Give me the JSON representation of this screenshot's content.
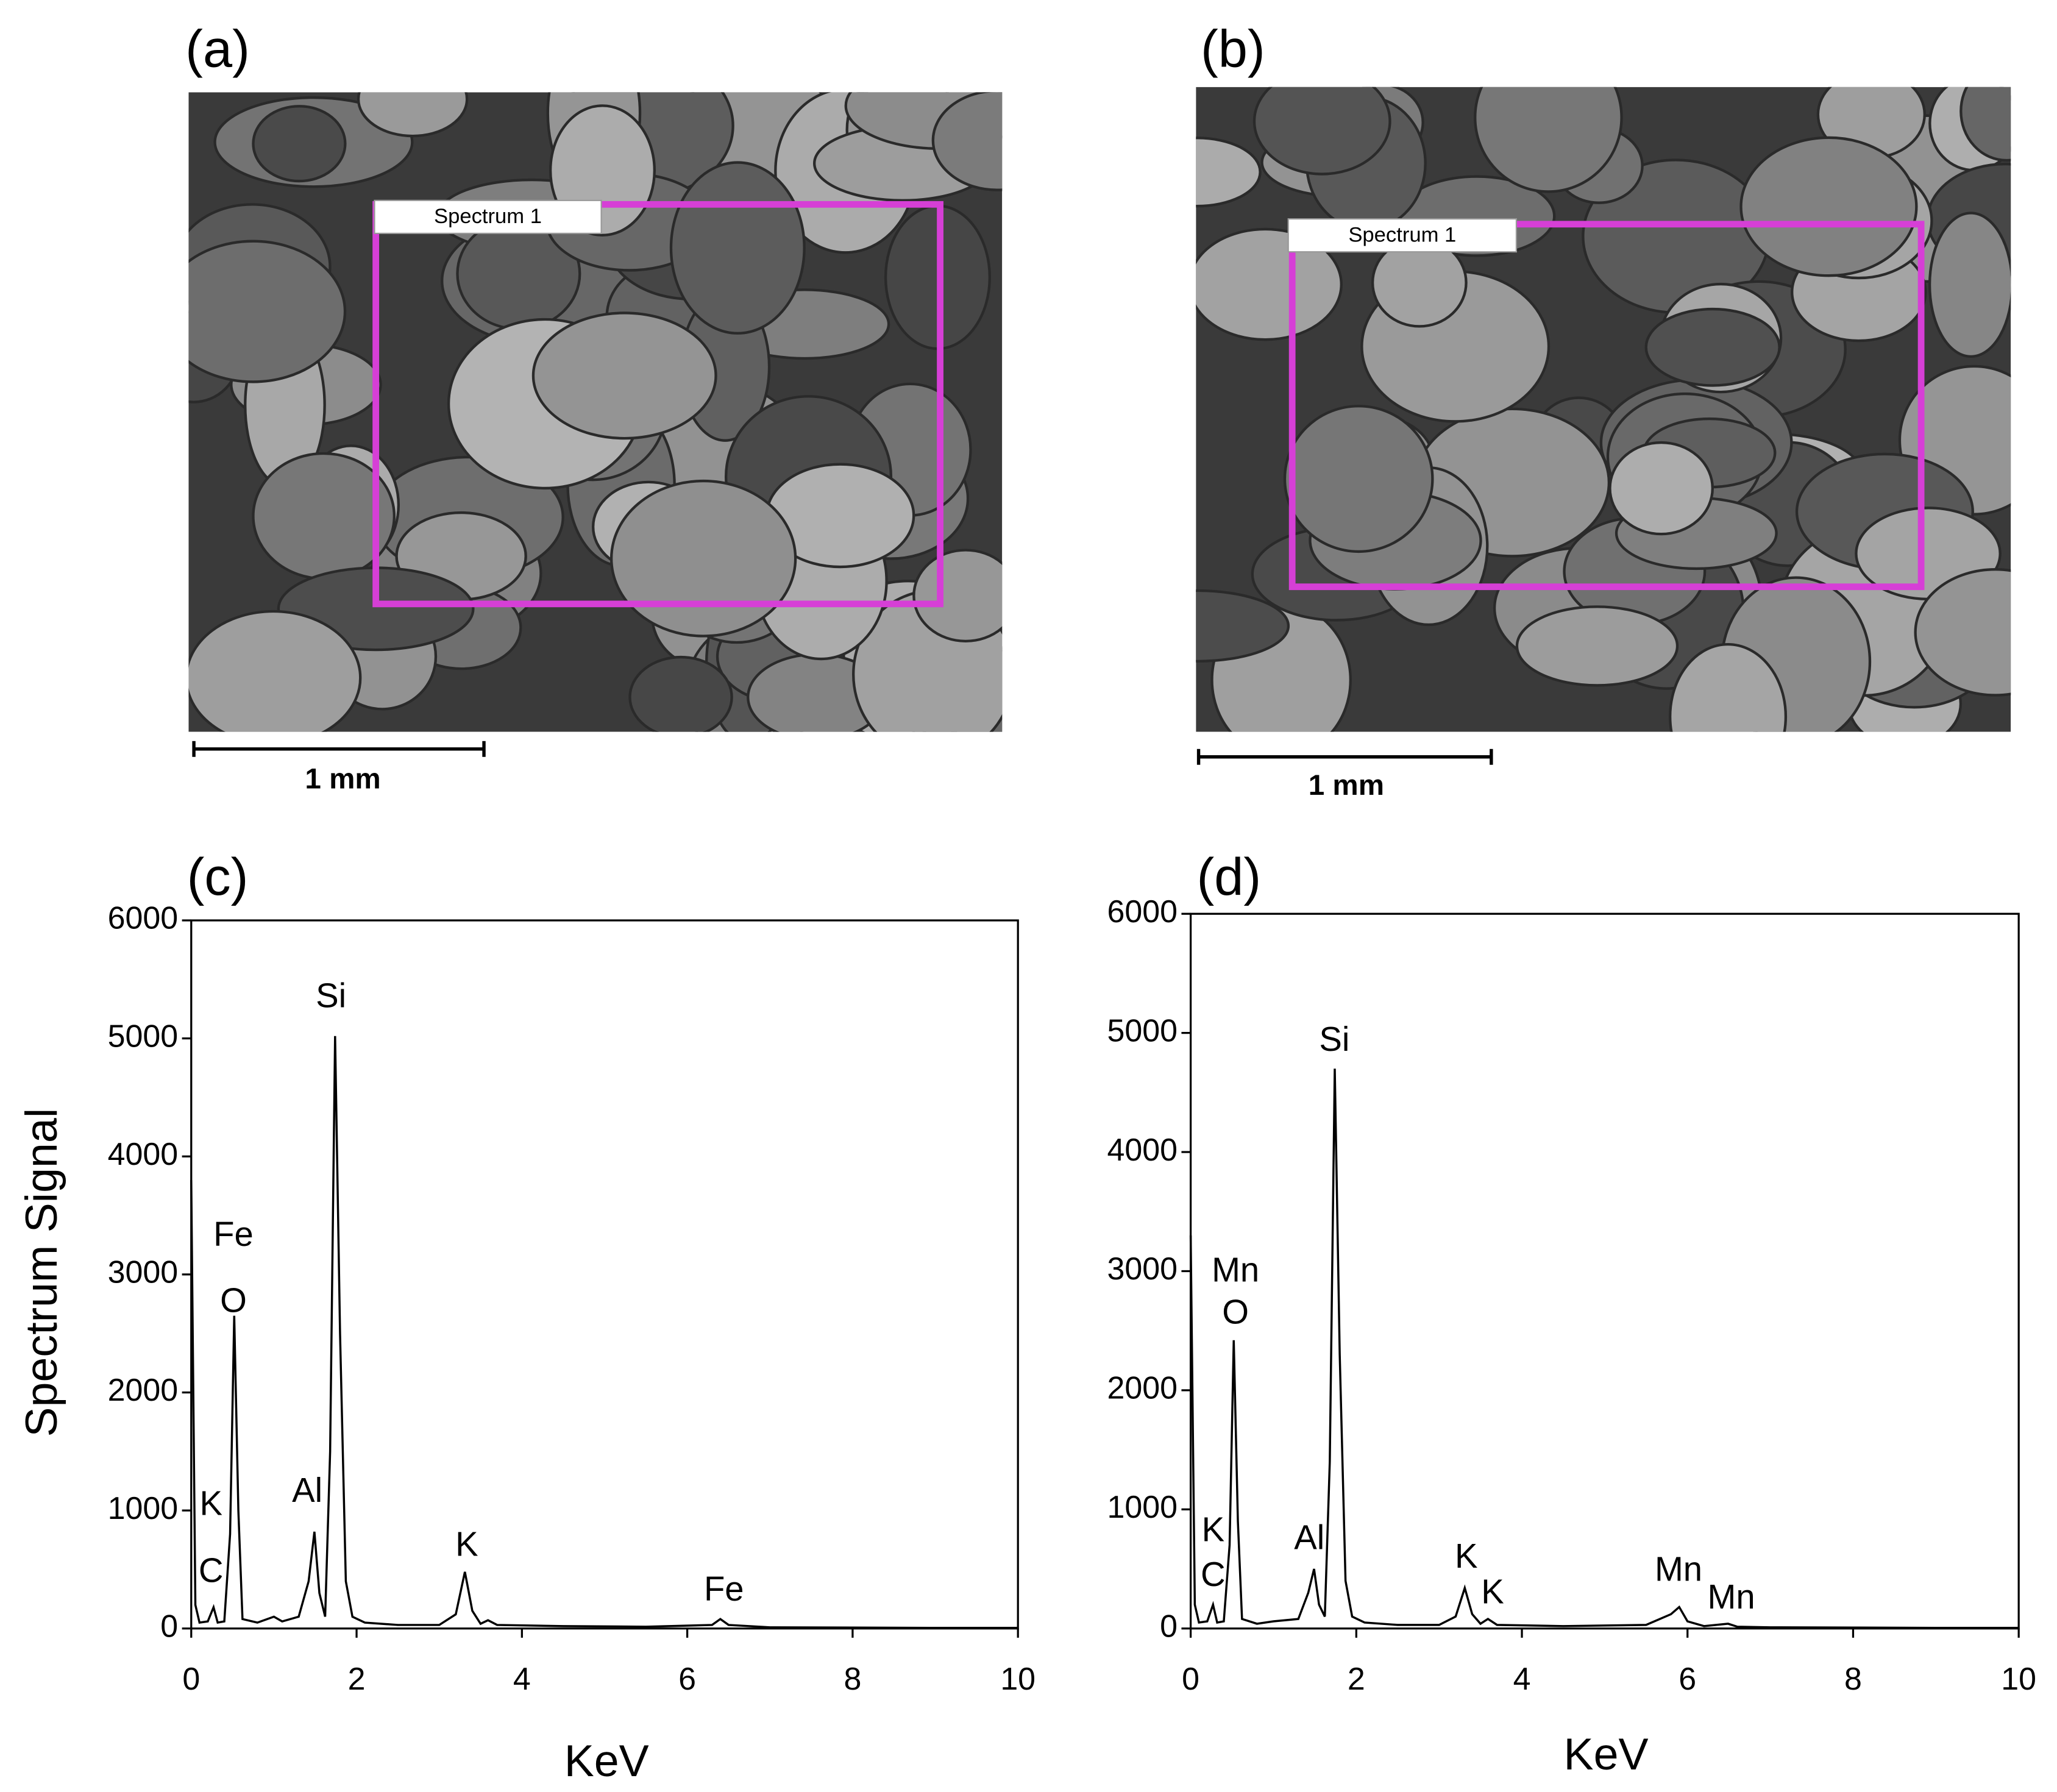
{
  "panels": [
    {
      "label": "(a)",
      "box_label": "Spectrum 1",
      "scale_label": "1 mm"
    },
    {
      "label": "(b)",
      "box_label": "Spectrum 1",
      "scale_label": "1 mm"
    }
  ],
  "chart_data": [
    {
      "type": "line",
      "title": "(c)",
      "ylabel": "Spectrum Signal",
      "xlabel": "KeV",
      "color": "#000000",
      "x": [
        0,
        0.05,
        0.1,
        0.2,
        0.27,
        0.32,
        0.4,
        0.47,
        0.52,
        0.57,
        0.62,
        0.8,
        1.0,
        1.1,
        1.3,
        1.42,
        1.49,
        1.55,
        1.62,
        1.68,
        1.74,
        1.8,
        1.87,
        1.95,
        2.1,
        2.5,
        3.0,
        3.2,
        3.31,
        3.4,
        3.5,
        3.59,
        3.7,
        4.5,
        5.5,
        6.3,
        6.4,
        6.5,
        7.0,
        8,
        9,
        10
      ],
      "values": [
        3800,
        200,
        50,
        60,
        180,
        50,
        60,
        800,
        2650,
        1000,
        80,
        50,
        100,
        60,
        100,
        400,
        820,
        300,
        100,
        1500,
        5020,
        2500,
        400,
        100,
        50,
        30,
        30,
        120,
        480,
        150,
        40,
        70,
        30,
        20,
        15,
        30,
        80,
        30,
        10,
        8,
        5,
        5
      ],
      "xlim": [
        0,
        10
      ],
      "ylim": [
        0,
        6000
      ],
      "xticks": [
        0,
        2,
        4,
        6,
        8,
        10
      ],
      "yticks": [
        0,
        1000,
        2000,
        3000,
        4000,
        5000,
        6000
      ],
      "annotations": [
        "K",
        "C",
        "Fe",
        "O",
        "Al",
        "Si",
        "K",
        "Fe"
      ]
    },
    {
      "type": "line",
      "title": "(d)",
      "xlabel": "KeV",
      "color": "#000000",
      "x": [
        0,
        0.05,
        0.1,
        0.2,
        0.27,
        0.32,
        0.4,
        0.47,
        0.52,
        0.57,
        0.62,
        0.8,
        1.0,
        1.3,
        1.42,
        1.49,
        1.55,
        1.62,
        1.68,
        1.74,
        1.8,
        1.87,
        1.95,
        2.1,
        2.5,
        3.0,
        3.2,
        3.31,
        3.4,
        3.5,
        3.59,
        3.7,
        4.5,
        5.5,
        5.8,
        5.9,
        6.0,
        6.2,
        6.49,
        6.6,
        7.0,
        8,
        9,
        10
      ],
      "values": [
        3300,
        200,
        50,
        60,
        200,
        50,
        60,
        700,
        2420,
        900,
        80,
        40,
        60,
        80,
        300,
        500,
        200,
        100,
        1400,
        4700,
        2300,
        400,
        100,
        50,
        30,
        30,
        100,
        340,
        120,
        40,
        80,
        30,
        20,
        30,
        120,
        180,
        60,
        20,
        40,
        15,
        10,
        8,
        5,
        5
      ],
      "xlim": [
        0,
        10
      ],
      "ylim": [
        0,
        6000
      ],
      "xticks": [
        0,
        2,
        4,
        6,
        8,
        10
      ],
      "yticks": [
        0,
        1000,
        2000,
        3000,
        4000,
        5000,
        6000
      ],
      "annotations": [
        "K",
        "C",
        "Mn",
        "O",
        "Al",
        "Si",
        "K",
        "K",
        "Mn",
        "Mn"
      ]
    }
  ]
}
